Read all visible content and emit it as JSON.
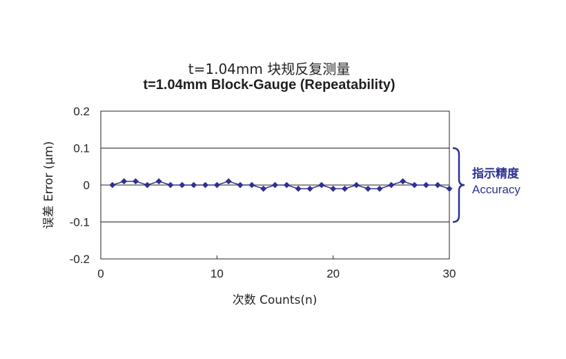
{
  "chart_data": {
    "type": "line",
    "title": "t=1.04mm 块规反复测量",
    "subtitle": "t=1.04mm Block-Gauge (Repeatability)",
    "xlabel": "次数 Counts(n)",
    "ylabel": "误差 Error (μm)",
    "xlim": [
      0,
      30
    ],
    "ylim": [
      -0.2,
      0.2
    ],
    "x_ticks": [
      "0",
      "10",
      "20",
      "30"
    ],
    "y_ticks": [
      "0.2",
      "0.1",
      "0",
      "-0.1",
      "-0.2"
    ],
    "x": [
      1,
      2,
      3,
      4,
      5,
      6,
      7,
      8,
      9,
      10,
      11,
      12,
      13,
      14,
      15,
      16,
      17,
      18,
      19,
      20,
      21,
      22,
      23,
      24,
      25,
      26,
      27,
      28,
      29,
      30
    ],
    "series": [
      {
        "values": [
          0,
          0.01,
          0.01,
          0,
          0.01,
          0,
          0,
          0,
          0,
          0,
          0.01,
          0,
          0,
          -0.01,
          0,
          0,
          -0.01,
          -0.01,
          0,
          -0.01,
          -0.01,
          0,
          -0.01,
          -0.01,
          0,
          0.01,
          0,
          0,
          0,
          -0.01
        ]
      }
    ],
    "grid": "horizontal",
    "series_color": "#2e3192",
    "annotation": {
      "label_cn": "指示精度",
      "label_en": "Accuracy",
      "range": [
        -0.1,
        0.1
      ],
      "color": "#2e3192"
    }
  }
}
